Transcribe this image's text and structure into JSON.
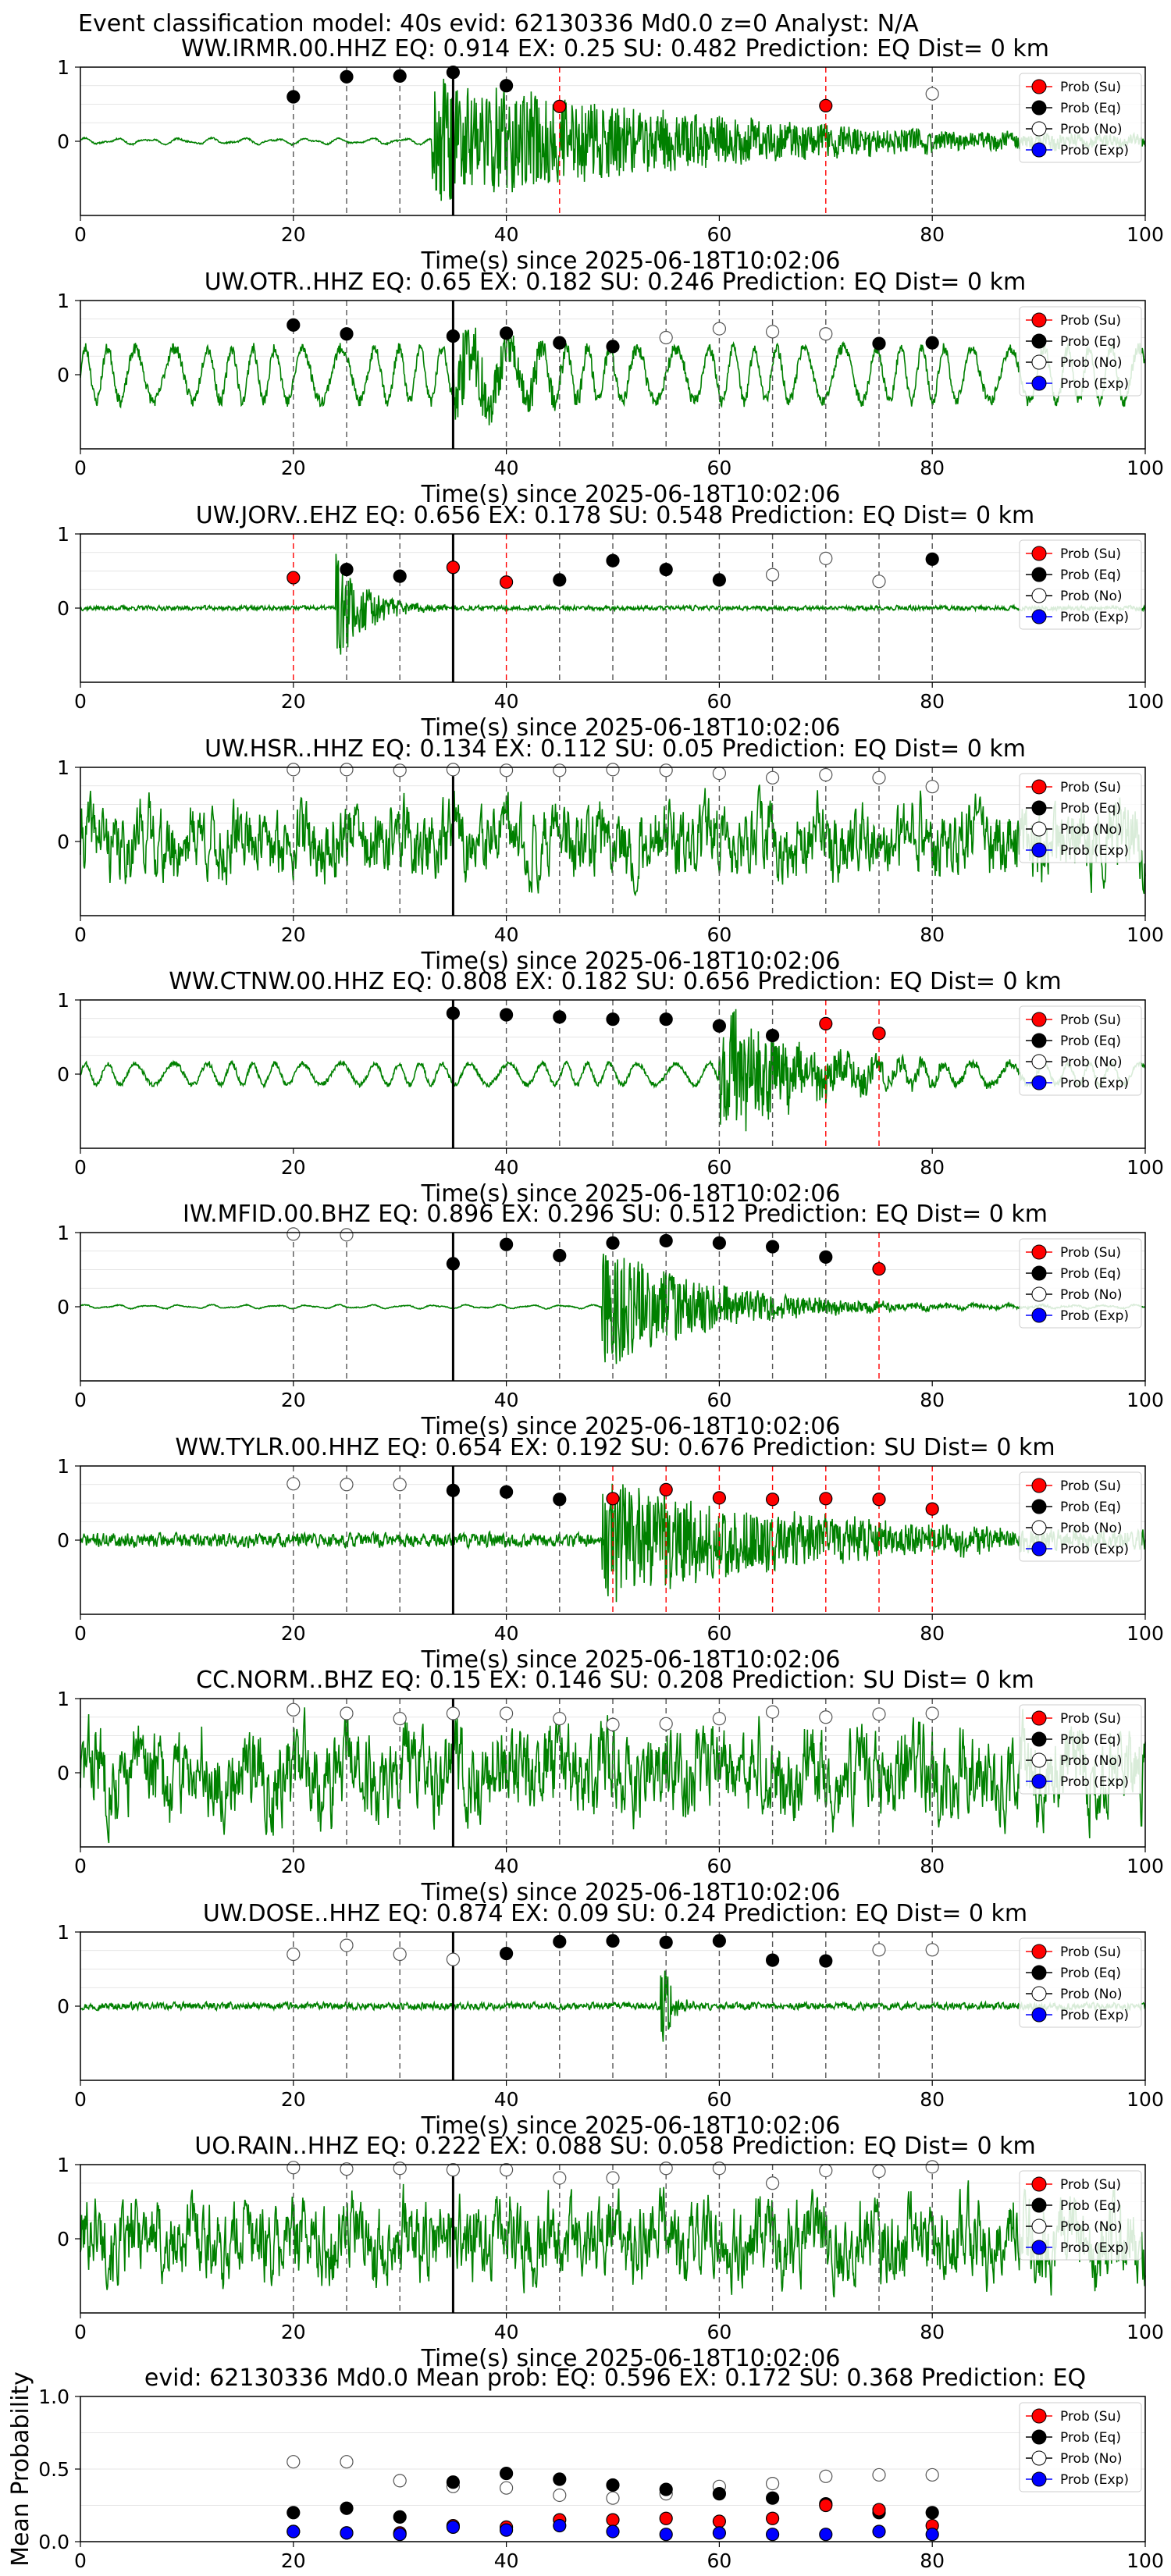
{
  "figure": {
    "suptitle": "Event classification model: 40s evid: 62130336 Md0.0 z=0 Analyst: N/A"
  },
  "legend": {
    "entries": [
      {
        "label": "Prob (Su)",
        "color": "#ff0000"
      },
      {
        "label": "Prob (Eq)",
        "color": "#000000"
      },
      {
        "label": "Prob (No)",
        "color": "#ffffff"
      },
      {
        "label": "Prob (Exp)",
        "color": "#0000ff"
      }
    ]
  },
  "colors": {
    "trace": "#008000",
    "su": "#ff0000",
    "eq": "#000000",
    "no": "#ffffff",
    "exp": "#0000ff",
    "gridline": "#dddddd"
  },
  "chart_data": [
    {
      "type": "scatter",
      "title": "WW.IRMR.00.HHZ   EQ: 0.914  EX: 0.25  SU: 0.482   Prediction: EQ    Dist= 0 km",
      "xlabel": "Time(s) since 2025-06-18T10:02:06",
      "xlim": [
        0,
        100
      ],
      "xticks": [
        "0",
        "20",
        "40",
        "60",
        "80",
        "100"
      ],
      "yticks": [
        "0",
        "1"
      ],
      "ylim": [
        -1,
        1
      ],
      "pick_time": 35,
      "trace": {
        "amp": 0.05,
        "onset": 33,
        "burst_amp": 0.85,
        "decay": 0.04,
        "seed": 11,
        "style": "lf"
      },
      "points": [
        {
          "x": 20,
          "y": 0.6,
          "cls": "eq"
        },
        {
          "x": 25,
          "y": 0.87,
          "cls": "eq"
        },
        {
          "x": 30,
          "y": 0.88,
          "cls": "eq"
        },
        {
          "x": 35,
          "y": 0.93,
          "cls": "eq"
        },
        {
          "x": 40,
          "y": 0.75,
          "cls": "eq"
        },
        {
          "x": 45,
          "y": 0.47,
          "cls": "su"
        },
        {
          "x": 70,
          "y": 0.48,
          "cls": "su"
        },
        {
          "x": 80,
          "y": 0.64,
          "cls": "no"
        }
      ]
    },
    {
      "type": "scatter",
      "title": "UW.OTR..HHZ   EQ: 0.65  EX: 0.182  SU: 0.246   Prediction: EQ    Dist= 0 km",
      "xlabel": "Time(s) since 2025-06-18T10:02:06",
      "xlim": [
        0,
        100
      ],
      "xticks": [
        "0",
        "20",
        "40",
        "60",
        "80",
        "100"
      ],
      "yticks": [
        "0",
        "1"
      ],
      "ylim": [
        -1,
        1
      ],
      "pick_time": 35,
      "trace": {
        "amp": 0.45,
        "onset": 35,
        "burst_amp": 0.5,
        "decay": 0.15,
        "seed": 23,
        "style": "osc"
      },
      "points": [
        {
          "x": 20,
          "y": 0.67,
          "cls": "eq"
        },
        {
          "x": 25,
          "y": 0.55,
          "cls": "eq"
        },
        {
          "x": 35,
          "y": 0.52,
          "cls": "eq"
        },
        {
          "x": 40,
          "y": 0.56,
          "cls": "eq"
        },
        {
          "x": 45,
          "y": 0.43,
          "cls": "eq"
        },
        {
          "x": 50,
          "y": 0.38,
          "cls": "eq"
        },
        {
          "x": 55,
          "y": 0.5,
          "cls": "no"
        },
        {
          "x": 60,
          "y": 0.62,
          "cls": "no"
        },
        {
          "x": 65,
          "y": 0.58,
          "cls": "no"
        },
        {
          "x": 70,
          "y": 0.55,
          "cls": "no"
        },
        {
          "x": 75,
          "y": 0.42,
          "cls": "eq"
        },
        {
          "x": 80,
          "y": 0.43,
          "cls": "eq"
        }
      ]
    },
    {
      "type": "scatter",
      "title": "UW.JORV..EHZ   EQ: 0.656  EX: 0.178  SU: 0.548   Prediction: EQ    Dist= 0 km",
      "xlabel": "Time(s) since 2025-06-18T10:02:06",
      "xlim": [
        0,
        100
      ],
      "xticks": [
        "0",
        "20",
        "40",
        "60",
        "80",
        "100"
      ],
      "yticks": [
        "0",
        "1"
      ],
      "ylim": [
        -1,
        1
      ],
      "pick_time": 35,
      "trace": {
        "amp": 0.04,
        "onset": 24,
        "burst_amp": 0.7,
        "decay": 0.35,
        "seed": 37,
        "style": "hf"
      },
      "points": [
        {
          "x": 20,
          "y": 0.41,
          "cls": "su"
        },
        {
          "x": 25,
          "y": 0.52,
          "cls": "eq"
        },
        {
          "x": 30,
          "y": 0.43,
          "cls": "eq"
        },
        {
          "x": 35,
          "y": 0.55,
          "cls": "su"
        },
        {
          "x": 40,
          "y": 0.35,
          "cls": "su"
        },
        {
          "x": 45,
          "y": 0.38,
          "cls": "eq"
        },
        {
          "x": 50,
          "y": 0.64,
          "cls": "eq"
        },
        {
          "x": 55,
          "y": 0.52,
          "cls": "eq"
        },
        {
          "x": 60,
          "y": 0.38,
          "cls": "eq"
        },
        {
          "x": 65,
          "y": 0.45,
          "cls": "no"
        },
        {
          "x": 70,
          "y": 0.67,
          "cls": "no"
        },
        {
          "x": 75,
          "y": 0.36,
          "cls": "no"
        },
        {
          "x": 80,
          "y": 0.66,
          "cls": "eq"
        }
      ]
    },
    {
      "type": "scatter",
      "title": "UW.HSR..HHZ   EQ: 0.134  EX: 0.112  SU: 0.05   Prediction: EQ    Dist= 0 km",
      "xlabel": "Time(s) since 2025-06-18T10:02:06",
      "xlim": [
        0,
        100
      ],
      "xticks": [
        "0",
        "20",
        "40",
        "60",
        "80",
        "100"
      ],
      "yticks": [
        "0",
        "1"
      ],
      "ylim": [
        -1,
        1
      ],
      "pick_time": 35,
      "trace": {
        "amp": 0.45,
        "onset": 200,
        "burst_amp": 0,
        "decay": 0.1,
        "seed": 41,
        "style": "noise"
      },
      "points": [
        {
          "x": 20,
          "y": 0.97,
          "cls": "no"
        },
        {
          "x": 25,
          "y": 0.97,
          "cls": "no"
        },
        {
          "x": 30,
          "y": 0.96,
          "cls": "no"
        },
        {
          "x": 35,
          "y": 0.97,
          "cls": "no"
        },
        {
          "x": 40,
          "y": 0.96,
          "cls": "no"
        },
        {
          "x": 45,
          "y": 0.96,
          "cls": "no"
        },
        {
          "x": 50,
          "y": 0.97,
          "cls": "no"
        },
        {
          "x": 55,
          "y": 0.96,
          "cls": "no"
        },
        {
          "x": 60,
          "y": 0.92,
          "cls": "no"
        },
        {
          "x": 65,
          "y": 0.86,
          "cls": "no"
        },
        {
          "x": 70,
          "y": 0.9,
          "cls": "no"
        },
        {
          "x": 75,
          "y": 0.86,
          "cls": "no"
        },
        {
          "x": 80,
          "y": 0.74,
          "cls": "no"
        }
      ]
    },
    {
      "type": "scatter",
      "title": "WW.CTNW.00.HHZ   EQ: 0.808  EX: 0.182  SU: 0.656   Prediction: EQ    Dist= 0 km",
      "xlabel": "Time(s) since 2025-06-18T10:02:06",
      "xlim": [
        0,
        100
      ],
      "xticks": [
        "0",
        "20",
        "40",
        "60",
        "80",
        "100"
      ],
      "yticks": [
        "0",
        "1"
      ],
      "ylim": [
        -1,
        1
      ],
      "pick_time": 35,
      "trace": {
        "amp": 0.18,
        "onset": 60,
        "burst_amp": 0.85,
        "decay": 0.12,
        "seed": 53,
        "style": "osc"
      },
      "points": [
        {
          "x": 35,
          "y": 0.82,
          "cls": "eq"
        },
        {
          "x": 40,
          "y": 0.8,
          "cls": "eq"
        },
        {
          "x": 45,
          "y": 0.77,
          "cls": "eq"
        },
        {
          "x": 50,
          "y": 0.74,
          "cls": "eq"
        },
        {
          "x": 55,
          "y": 0.74,
          "cls": "eq"
        },
        {
          "x": 60,
          "y": 0.65,
          "cls": "eq"
        },
        {
          "x": 65,
          "y": 0.52,
          "cls": "eq"
        },
        {
          "x": 70,
          "y": 0.68,
          "cls": "su"
        },
        {
          "x": 75,
          "y": 0.55,
          "cls": "su"
        }
      ]
    },
    {
      "type": "scatter",
      "title": "IW.MFID.00.BHZ   EQ: 0.896  EX: 0.296  SU: 0.512   Prediction: EQ    Dist= 0 km",
      "xlabel": "Time(s) since 2025-06-18T10:02:06",
      "xlim": [
        0,
        100
      ],
      "xticks": [
        "0",
        "20",
        "40",
        "60",
        "80",
        "100"
      ],
      "yticks": [
        "0",
        "1"
      ],
      "ylim": [
        -1,
        1
      ],
      "pick_time": 35,
      "trace": {
        "amp": 0.03,
        "onset": 49,
        "burst_amp": 0.8,
        "decay": 0.1,
        "seed": 61,
        "style": "lf"
      },
      "points": [
        {
          "x": 20,
          "y": 0.98,
          "cls": "no"
        },
        {
          "x": 25,
          "y": 0.97,
          "cls": "no"
        },
        {
          "x": 35,
          "y": 0.58,
          "cls": "eq"
        },
        {
          "x": 40,
          "y": 0.84,
          "cls": "eq"
        },
        {
          "x": 45,
          "y": 0.69,
          "cls": "eq"
        },
        {
          "x": 50,
          "y": 0.86,
          "cls": "eq"
        },
        {
          "x": 55,
          "y": 0.89,
          "cls": "eq"
        },
        {
          "x": 60,
          "y": 0.86,
          "cls": "eq"
        },
        {
          "x": 65,
          "y": 0.81,
          "cls": "eq"
        },
        {
          "x": 70,
          "y": 0.67,
          "cls": "eq"
        },
        {
          "x": 75,
          "y": 0.51,
          "cls": "su"
        }
      ]
    },
    {
      "type": "scatter",
      "title": "WW.TYLR.00.HHZ   EQ: 0.654  EX: 0.192  SU: 0.676   Prediction: SU    Dist= 0 km",
      "xlabel": "Time(s) since 2025-06-18T10:02:06",
      "xlim": [
        0,
        100
      ],
      "xticks": [
        "0",
        "20",
        "40",
        "60",
        "80",
        "100"
      ],
      "yticks": [
        "0",
        "1"
      ],
      "ylim": [
        -1,
        1
      ],
      "pick_time": 35,
      "trace": {
        "amp": 0.12,
        "onset": 49,
        "burst_amp": 0.75,
        "decay": 0.05,
        "seed": 71,
        "style": "hf"
      },
      "points": [
        {
          "x": 20,
          "y": 0.76,
          "cls": "no"
        },
        {
          "x": 25,
          "y": 0.75,
          "cls": "no"
        },
        {
          "x": 30,
          "y": 0.75,
          "cls": "no"
        },
        {
          "x": 35,
          "y": 0.67,
          "cls": "eq"
        },
        {
          "x": 40,
          "y": 0.65,
          "cls": "eq"
        },
        {
          "x": 45,
          "y": 0.55,
          "cls": "eq"
        },
        {
          "x": 50,
          "y": 0.56,
          "cls": "su"
        },
        {
          "x": 55,
          "y": 0.68,
          "cls": "su"
        },
        {
          "x": 60,
          "y": 0.57,
          "cls": "su"
        },
        {
          "x": 65,
          "y": 0.55,
          "cls": "su"
        },
        {
          "x": 70,
          "y": 0.56,
          "cls": "su"
        },
        {
          "x": 75,
          "y": 0.55,
          "cls": "su"
        },
        {
          "x": 80,
          "y": 0.42,
          "cls": "su"
        }
      ]
    },
    {
      "type": "scatter",
      "title": "CC.NORM..BHZ   EQ: 0.15  EX: 0.146  SU: 0.208   Prediction: SU    Dist= 0 km",
      "xlabel": "Time(s) since 2025-06-18T10:02:06",
      "xlim": [
        0,
        100
      ],
      "xticks": [
        "0",
        "20",
        "40",
        "60",
        "80",
        "100"
      ],
      "yticks": [
        "0",
        "1"
      ],
      "ylim": [
        -1,
        1
      ],
      "pick_time": 35,
      "trace": {
        "amp": 0.55,
        "onset": 200,
        "burst_amp": 0,
        "decay": 0.1,
        "seed": 83,
        "style": "noise"
      },
      "points": [
        {
          "x": 20,
          "y": 0.85,
          "cls": "no"
        },
        {
          "x": 25,
          "y": 0.8,
          "cls": "no"
        },
        {
          "x": 30,
          "y": 0.73,
          "cls": "no"
        },
        {
          "x": 35,
          "y": 0.8,
          "cls": "no"
        },
        {
          "x": 40,
          "y": 0.8,
          "cls": "no"
        },
        {
          "x": 45,
          "y": 0.73,
          "cls": "no"
        },
        {
          "x": 50,
          "y": 0.65,
          "cls": "no"
        },
        {
          "x": 55,
          "y": 0.66,
          "cls": "no"
        },
        {
          "x": 60,
          "y": 0.73,
          "cls": "no"
        },
        {
          "x": 65,
          "y": 0.82,
          "cls": "no"
        },
        {
          "x": 70,
          "y": 0.75,
          "cls": "no"
        },
        {
          "x": 75,
          "y": 0.79,
          "cls": "no"
        },
        {
          "x": 80,
          "y": 0.8,
          "cls": "no"
        }
      ]
    },
    {
      "type": "scatter",
      "title": "UW.DOSE..HHZ   EQ: 0.874  EX: 0.09  SU: 0.24   Prediction: EQ    Dist= 0 km",
      "xlabel": "Time(s) since 2025-06-18T10:02:06",
      "xlim": [
        0,
        100
      ],
      "xticks": [
        "0",
        "20",
        "40",
        "60",
        "80",
        "100"
      ],
      "yticks": [
        "0",
        "1"
      ],
      "ylim": [
        -1,
        1
      ],
      "pick_time": 35,
      "trace": {
        "amp": 0.06,
        "onset": 54.5,
        "burst_amp": 0.75,
        "decay": 1.2,
        "seed": 97,
        "style": "hf"
      },
      "points": [
        {
          "x": 20,
          "y": 0.7,
          "cls": "no"
        },
        {
          "x": 25,
          "y": 0.82,
          "cls": "no"
        },
        {
          "x": 30,
          "y": 0.7,
          "cls": "no"
        },
        {
          "x": 35,
          "y": 0.63,
          "cls": "no"
        },
        {
          "x": 40,
          "y": 0.71,
          "cls": "eq"
        },
        {
          "x": 45,
          "y": 0.87,
          "cls": "eq"
        },
        {
          "x": 50,
          "y": 0.88,
          "cls": "eq"
        },
        {
          "x": 55,
          "y": 0.86,
          "cls": "eq"
        },
        {
          "x": 60,
          "y": 0.88,
          "cls": "eq"
        },
        {
          "x": 65,
          "y": 0.62,
          "cls": "eq"
        },
        {
          "x": 70,
          "y": 0.61,
          "cls": "eq"
        },
        {
          "x": 75,
          "y": 0.76,
          "cls": "no"
        },
        {
          "x": 80,
          "y": 0.76,
          "cls": "no"
        }
      ]
    },
    {
      "type": "scatter",
      "title": "UO.RAIN..HHZ   EQ: 0.222  EX: 0.088  SU: 0.058   Prediction: EQ    Dist= 0 km",
      "xlabel": "Time(s) since 2025-06-18T10:02:06",
      "xlim": [
        0,
        100
      ],
      "xticks": [
        "0",
        "20",
        "40",
        "60",
        "80",
        "100"
      ],
      "yticks": [
        "0",
        "1"
      ],
      "ylim": [
        -1,
        1
      ],
      "pick_time": 35,
      "trace": {
        "amp": 0.5,
        "onset": 200,
        "burst_amp": 0,
        "decay": 0.1,
        "seed": 101,
        "style": "noise"
      },
      "points": [
        {
          "x": 20,
          "y": 0.96,
          "cls": "no"
        },
        {
          "x": 25,
          "y": 0.94,
          "cls": "no"
        },
        {
          "x": 30,
          "y": 0.95,
          "cls": "no"
        },
        {
          "x": 35,
          "y": 0.93,
          "cls": "no"
        },
        {
          "x": 40,
          "y": 0.93,
          "cls": "no"
        },
        {
          "x": 45,
          "y": 0.82,
          "cls": "no"
        },
        {
          "x": 50,
          "y": 0.82,
          "cls": "no"
        },
        {
          "x": 55,
          "y": 0.95,
          "cls": "no"
        },
        {
          "x": 60,
          "y": 0.95,
          "cls": "no"
        },
        {
          "x": 65,
          "y": 0.75,
          "cls": "no"
        },
        {
          "x": 70,
          "y": 0.92,
          "cls": "no"
        },
        {
          "x": 75,
          "y": 0.91,
          "cls": "no"
        },
        {
          "x": 80,
          "y": 0.97,
          "cls": "no"
        }
      ]
    },
    {
      "type": "scatter",
      "title": "evid: 62130336  Md0.0   Mean prob:   EQ: 0.596  EX: 0.172  SU: 0.368   Prediction: EQ",
      "ylabel": "Mean Probability",
      "xlim": [
        0,
        100
      ],
      "ylim": [
        0,
        1
      ],
      "xticks": [
        "0",
        "20",
        "40",
        "60",
        "80",
        "100"
      ],
      "yticks": [
        "0.0",
        "0.5",
        "1.0"
      ],
      "series": [
        {
          "cls": "no",
          "x": [
            20,
            25,
            30,
            35,
            40,
            45,
            50,
            55,
            60,
            65,
            70,
            75,
            80
          ],
          "values": [
            0.55,
            0.55,
            0.42,
            0.38,
            0.37,
            0.32,
            0.3,
            0.33,
            0.38,
            0.4,
            0.45,
            0.46,
            0.46
          ]
        },
        {
          "cls": "eq",
          "x": [
            20,
            25,
            30,
            35,
            40,
            45,
            50,
            55,
            60,
            65,
            70,
            75,
            80
          ],
          "values": [
            0.2,
            0.23,
            0.17,
            0.41,
            0.47,
            0.43,
            0.39,
            0.36,
            0.33,
            0.3,
            0.26,
            0.2,
            0.2
          ]
        },
        {
          "cls": "su",
          "x": [
            20,
            25,
            30,
            35,
            40,
            45,
            50,
            55,
            60,
            65,
            70,
            75,
            80
          ],
          "values": [
            0.07,
            0.06,
            0.06,
            0.11,
            0.1,
            0.15,
            0.15,
            0.16,
            0.14,
            0.16,
            0.25,
            0.22,
            0.11
          ]
        },
        {
          "cls": "exp",
          "x": [
            20,
            25,
            30,
            35,
            40,
            45,
            50,
            55,
            60,
            65,
            70,
            75,
            80
          ],
          "values": [
            0.07,
            0.06,
            0.05,
            0.1,
            0.08,
            0.11,
            0.07,
            0.05,
            0.06,
            0.05,
            0.05,
            0.07,
            0.05
          ]
        }
      ]
    }
  ]
}
